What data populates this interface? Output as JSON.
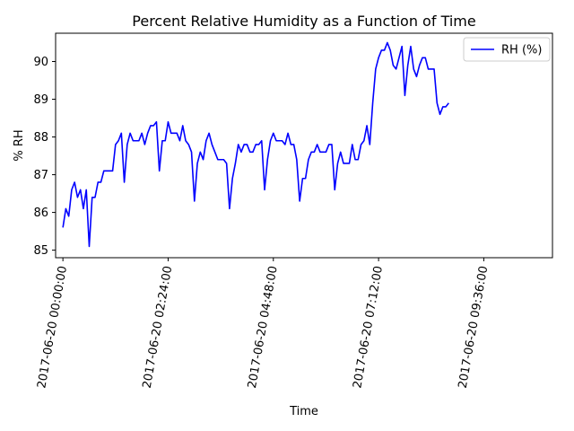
{
  "chart_data": {
    "type": "line",
    "title": "Percent Relative Humidity as a Function of Time",
    "xlabel": "Time",
    "ylabel": "% RH",
    "x_start": "2017-06-20 00:00:00",
    "x_interval_minutes": 4,
    "xlim_minutes": [
      -10,
      670
    ],
    "ylim": [
      84.8,
      90.75
    ],
    "x_ticks": [
      {
        "minutes": 0,
        "label": "2017-06-20 00:00:00"
      },
      {
        "minutes": 144,
        "label": "2017-06-20 02:24:00"
      },
      {
        "minutes": 288,
        "label": "2017-06-20 04:48:00"
      },
      {
        "minutes": 432,
        "label": "2017-06-20 07:12:00"
      },
      {
        "minutes": 576,
        "label": "2017-06-20 09:36:00"
      }
    ],
    "y_ticks": [
      85,
      86,
      87,
      88,
      89,
      90
    ],
    "grid": false,
    "legend": "top-right",
    "color": "#0000ff",
    "series": [
      {
        "name": "RH (%)",
        "values": [
          85.6,
          86.1,
          85.9,
          86.6,
          86.8,
          86.4,
          86.6,
          86.1,
          86.6,
          85.1,
          86.4,
          86.4,
          86.8,
          86.8,
          87.1,
          87.1,
          87.1,
          87.1,
          87.8,
          87.9,
          88.1,
          86.8,
          87.8,
          88.1,
          87.9,
          87.9,
          87.9,
          88.1,
          87.8,
          88.1,
          88.3,
          88.3,
          88.4,
          87.1,
          87.9,
          87.9,
          88.4,
          88.1,
          88.1,
          88.1,
          87.9,
          88.3,
          87.9,
          87.8,
          87.6,
          86.3,
          87.3,
          87.6,
          87.4,
          87.9,
          88.1,
          87.8,
          87.6,
          87.4,
          87.4,
          87.4,
          87.3,
          86.1,
          86.9,
          87.3,
          87.8,
          87.6,
          87.8,
          87.8,
          87.6,
          87.6,
          87.8,
          87.8,
          87.9,
          86.6,
          87.4,
          87.9,
          88.1,
          87.9,
          87.9,
          87.9,
          87.8,
          88.1,
          87.8,
          87.8,
          87.4,
          86.3,
          86.9,
          86.9,
          87.4,
          87.6,
          87.6,
          87.8,
          87.6,
          87.6,
          87.6,
          87.8,
          87.8,
          86.6,
          87.3,
          87.6,
          87.3,
          87.3,
          87.3,
          87.8,
          87.4,
          87.4,
          87.8,
          87.9,
          88.3,
          87.8,
          88.9,
          89.8,
          90.1,
          90.3,
          90.3,
          90.5,
          90.3,
          89.9,
          89.8,
          90.1,
          90.4,
          89.1,
          89.9,
          90.4,
          89.8,
          89.6,
          89.9,
          90.1,
          90.1,
          89.8,
          89.8,
          89.8,
          88.9,
          88.6,
          88.8,
          88.8,
          88.9
        ]
      }
    ]
  }
}
